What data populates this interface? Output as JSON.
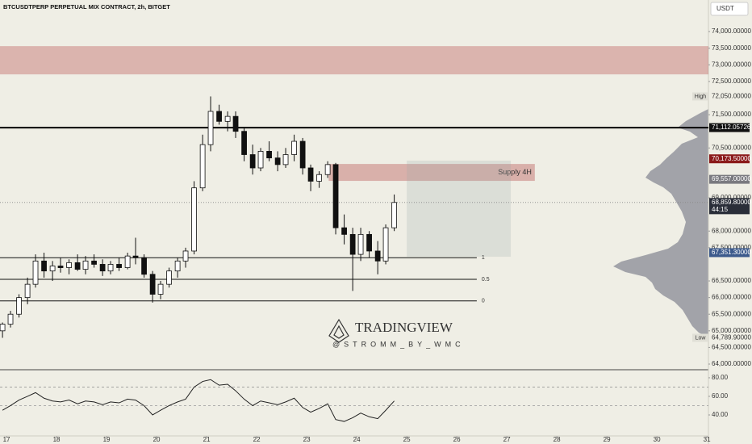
{
  "chart_data": {
    "type": "candlestick",
    "title": "BTCUSDTPERP PERPETUAL MIX CONTRACT, 2h, BITGET",
    "currency": "USDT",
    "watermark": "TRADINGVIEW",
    "watermark_user": "@STROMM_BY_WMC",
    "up_color": "#ffffff",
    "down_color": "#111111",
    "x": [
      16.92,
      17.08,
      17.25,
      17.42,
      17.58,
      17.75,
      17.92,
      18.08,
      18.25,
      18.42,
      18.58,
      18.75,
      18.92,
      19.08,
      19.25,
      19.42,
      19.58,
      19.75,
      19.92,
      20.08,
      20.25,
      20.42,
      20.58,
      20.75,
      20.92,
      21.08,
      21.25,
      21.42,
      21.58,
      21.75,
      21.92,
      22.08,
      22.25,
      22.42,
      22.58,
      22.75,
      22.92,
      23.08,
      23.25,
      23.42,
      23.58,
      23.75,
      23.92,
      24.08,
      24.25,
      24.42,
      24.58,
      24.75
    ],
    "open": [
      65000,
      65200,
      65500,
      66000,
      66400,
      67100,
      66800,
      66950,
      66900,
      67050,
      66850,
      67100,
      67000,
      66800,
      67000,
      66900,
      67250,
      67200,
      66700,
      66100,
      66400,
      66800,
      67100,
      67400,
      69300,
      70600,
      71600,
      71300,
      71450,
      71000,
      70300,
      69900,
      70400,
      70200,
      70000,
      70300,
      70700,
      69900,
      69500,
      69700,
      70000,
      68100,
      67900,
      67300,
      67900,
      67400,
      67100,
      68100
    ],
    "high": [
      65250,
      65600,
      66100,
      66600,
      67300,
      67350,
      67100,
      67200,
      67150,
      67300,
      67250,
      67300,
      67150,
      67100,
      67200,
      67350,
      67800,
      67300,
      66800,
      66500,
      66900,
      67200,
      67500,
      69500,
      70900,
      72050,
      71800,
      71600,
      71600,
      71100,
      70600,
      70500,
      70700,
      70400,
      70500,
      70900,
      70800,
      70000,
      69800,
      70100,
      70050,
      68500,
      68100,
      68100,
      68000,
      67700,
      68200,
      69100
    ],
    "low": [
      64790,
      65100,
      65400,
      65800,
      66300,
      66600,
      66500,
      66750,
      66700,
      66800,
      66700,
      66900,
      66650,
      66700,
      66800,
      66850,
      67000,
      66600,
      65850,
      65950,
      66300,
      66600,
      66900,
      67300,
      69200,
      70400,
      71200,
      71000,
      70800,
      70100,
      69700,
      69800,
      70100,
      69800,
      69900,
      70100,
      69700,
      69200,
      69300,
      69600,
      67900,
      67600,
      66200,
      67100,
      67200,
      66700,
      67000,
      68000
    ],
    "close": [
      65200,
      65500,
      66000,
      66400,
      67100,
      66800,
      66950,
      66900,
      67050,
      66850,
      67100,
      67000,
      66800,
      67000,
      66900,
      67250,
      67200,
      66700,
      66100,
      66400,
      66800,
      67100,
      67400,
      69300,
      70600,
      71600,
      71300,
      71450,
      71000,
      70300,
      69900,
      70400,
      70200,
      70000,
      70300,
      70700,
      69900,
      69500,
      69700,
      70000,
      68100,
      67900,
      67300,
      67900,
      67400,
      67100,
      68100,
      68860
    ],
    "xlim": [
      16.87,
      31.03
    ],
    "xticks": [
      17,
      18,
      19,
      20,
      21,
      22,
      23,
      24,
      25,
      26,
      27,
      28,
      29,
      30,
      31
    ],
    "ylim": [
      63830,
      74950
    ],
    "yticks": [
      {
        "value": 74000,
        "label": "74,000.00000"
      },
      {
        "value": 73500,
        "label": "73,500.00000"
      },
      {
        "value": 73000,
        "label": "73,000.00000"
      },
      {
        "value": 72500,
        "label": "72,500.00000"
      },
      {
        "value": 71500,
        "label": "71,500.00000"
      },
      {
        "value": 70500,
        "label": "70,500.00000"
      },
      {
        "value": 69000,
        "label": "69,000.00000"
      },
      {
        "value": 68000,
        "label": "68,000.00000"
      },
      {
        "value": 67500,
        "label": "67,500.00000"
      },
      {
        "value": 66500,
        "label": "66,500.00000"
      },
      {
        "value": 66000,
        "label": "66,000.00000"
      },
      {
        "value": 65500,
        "label": "65,500.00000"
      },
      {
        "value": 65000,
        "label": "65,000.00000"
      },
      {
        "value": 64500,
        "label": "64,500.00000"
      },
      {
        "value": 64000,
        "label": "64,000.00000"
      }
    ],
    "grid": false,
    "price_labels": [
      {
        "value": 71112.05726,
        "label": "71,112.05726",
        "color": "#111111"
      },
      {
        "value": 70173.5,
        "label": "70,173.50000",
        "color": "#8b1a1a"
      },
      {
        "value": 69557,
        "label": "69,557.00000",
        "color": "#7a7a80"
      },
      {
        "value": 68859.8,
        "label": "68,859.80000",
        "color": "#2a2e39",
        "countdown": "44:15"
      },
      {
        "value": 67351.3,
        "label": "67,351.30000",
        "color": "#3c5a8c"
      }
    ],
    "extremes": [
      {
        "name": "High",
        "value": 72050,
        "label": "72,050.00000"
      },
      {
        "name": "Low",
        "value": 64789.9,
        "label": "64,789.90000"
      }
    ],
    "hlines": [
      {
        "value": 71112.05726,
        "width": 2
      }
    ],
    "fib_levels": [
      {
        "value": 67200,
        "label": "1"
      },
      {
        "value": 66550,
        "label": "0.5"
      },
      {
        "value": 65900,
        "label": "0"
      }
    ],
    "fib_x": [
      16.87,
      26.4
    ],
    "zones": [
      {
        "y": [
          72713,
          73563
        ],
        "x": [
          16.87,
          31.03
        ],
        "color": "rgba(178,60,60,0.32)"
      },
      {
        "y": [
          69510,
          70019
        ],
        "x": [
          23.44,
          27.56
        ],
        "color": "rgba(178,60,60,0.35)",
        "label": "Supply 4H"
      },
      {
        "y": [
          67228,
          70120
        ],
        "x": [
          25.0,
          27.08
        ],
        "color": "rgba(150,170,170,0.22)"
      }
    ],
    "rsi": {
      "values": [
        45,
        50,
        56,
        60,
        64,
        58,
        55,
        54,
        56,
        52,
        55,
        54,
        51,
        54,
        53,
        57,
        56,
        50,
        40,
        45,
        50,
        54,
        57,
        70,
        76,
        78,
        72,
        73,
        66,
        57,
        50,
        55,
        53,
        51,
        54,
        58,
        48,
        43,
        47,
        52,
        35,
        33,
        37,
        42,
        38,
        36,
        45,
        55
      ],
      "color": "#222222",
      "ylim": [
        17.4,
        84.3
      ],
      "yticks": [
        {
          "value": 80,
          "label": "80.00"
        },
        {
          "value": 60,
          "label": "60.00"
        },
        {
          "value": 40,
          "label": "40.00"
        }
      ],
      "bands": [
        70,
        50
      ]
    }
  }
}
